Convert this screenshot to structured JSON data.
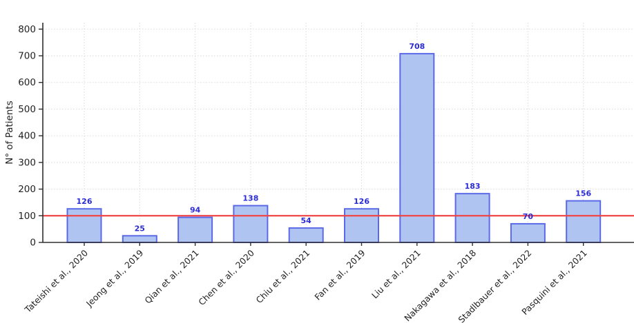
{
  "figure": {
    "background": "#ffffff"
  },
  "chart_data": {
    "type": "bar",
    "title": "",
    "xlabel": "",
    "ylabel": "N° of Patients",
    "categories": [
      "Tateishi et al., 2020",
      "Jeong et al., 2019",
      "Qian et al., 2021",
      "Chen et al., 2020",
      "Chiu et al., 2021",
      "Fan et al., 2019",
      "Liu et al., 2021",
      "Nakagawa et al., 2018",
      "Stadlbauer et al., 2022",
      "Pasquini et al., 2021"
    ],
    "values": [
      126,
      25,
      94,
      138,
      54,
      126,
      708,
      183,
      70,
      156
    ],
    "yticks": [
      0,
      100,
      200,
      300,
      400,
      500,
      600,
      700,
      800
    ],
    "ylim": [
      0,
      824
    ],
    "grid": {
      "style": "dotted",
      "axes": "both"
    },
    "legend": "none",
    "reference_line": {
      "y": 100,
      "color": "#ef4545"
    },
    "colors": {
      "bar_fill": "#b0c4f2",
      "bar_edge": "#5a69e6",
      "value_label": "#2c2cd6",
      "reference_line": "#ef4545",
      "axis_spine": "#2e2e2e",
      "grid_line": "#d9d9d9",
      "tick_label": "#1f1f1f"
    }
  }
}
